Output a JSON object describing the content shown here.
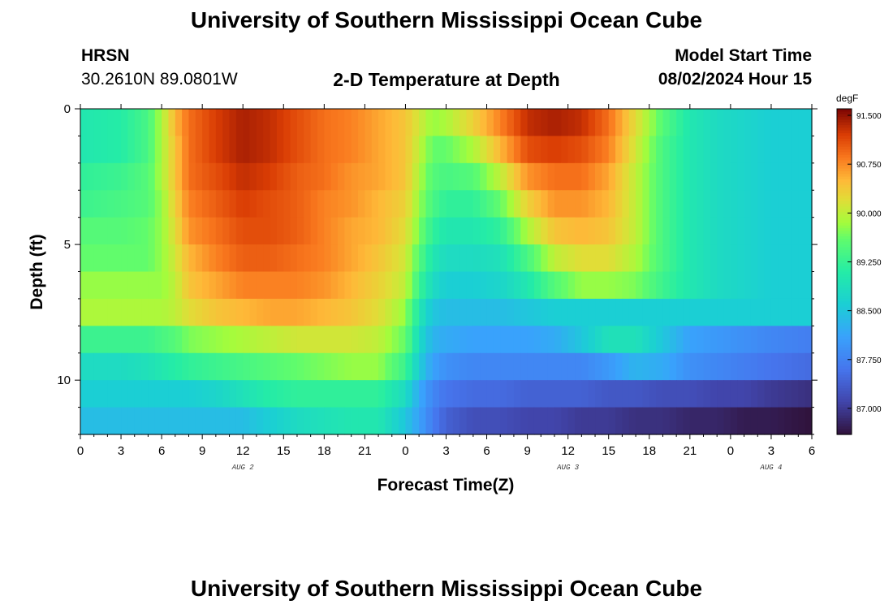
{
  "header": {
    "title": "University of Southern Mississippi Ocean Cube",
    "station": "HRSN",
    "coords": "30.2610N  89.0801W",
    "subtitle": "2-D Temperature at Depth",
    "model_label": "Model Start Time",
    "model_time": "08/02/2024 Hour 15"
  },
  "footer": {
    "title": "University of Southern Mississippi Ocean Cube"
  },
  "chart_data": {
    "type": "heatmap",
    "title": "2-D Temperature at Depth",
    "xlabel": "Forecast Time(Z)",
    "ylabel": "Depth (ft)",
    "x_range_hours": [
      0,
      54
    ],
    "x_ticks": [
      "0",
      "3",
      "6",
      "9",
      "12",
      "15",
      "18",
      "21",
      "0",
      "3",
      "6",
      "9",
      "12",
      "15",
      "18",
      "21",
      "0",
      "3",
      "6"
    ],
    "x_tick_hours": [
      0,
      3,
      6,
      9,
      12,
      15,
      18,
      21,
      24,
      27,
      30,
      33,
      36,
      39,
      42,
      45,
      48,
      51,
      54
    ],
    "day_labels": [
      {
        "label": "AUG 2",
        "hour": 12
      },
      {
        "label": "AUG 3",
        "hour": 36
      },
      {
        "label": "AUG 4",
        "hour": 51
      }
    ],
    "y_range_ft": [
      0,
      12
    ],
    "y_ticks": [
      "0",
      "5",
      "10"
    ],
    "y_tick_values": [
      0,
      5,
      10
    ],
    "depth_levels_ft": [
      0.5,
      1.5,
      2.5,
      3.5,
      4.5,
      5.5,
      6.5,
      7.5,
      8.5,
      9.5,
      10.5,
      11.5
    ],
    "colorbar": {
      "unit": "degF",
      "min": 86.6,
      "max": 91.6,
      "tick_labels": [
        "91.500",
        "90.750",
        "90.000",
        "89.250",
        "88.500",
        "87.750",
        "87.000"
      ],
      "tick_values": [
        91.5,
        90.75,
        90.0,
        89.25,
        88.5,
        87.75,
        87.0
      ]
    },
    "temperature_degF": {
      "hours": [
        0,
        3,
        5,
        6,
        7,
        8,
        10,
        12,
        14,
        16,
        18,
        20,
        22,
        24,
        25,
        26,
        27,
        29,
        31,
        33,
        35,
        37,
        39,
        41,
        43,
        45,
        47,
        49,
        51,
        54
      ],
      "rows": [
        [
          89.0,
          89.1,
          89.4,
          89.9,
          90.5,
          90.9,
          91.2,
          91.4,
          91.3,
          91.1,
          90.9,
          90.8,
          90.6,
          90.4,
          90.1,
          89.8,
          89.9,
          90.3,
          90.8,
          91.3,
          91.4,
          91.3,
          90.9,
          90.2,
          89.5,
          89.0,
          88.8,
          88.7,
          88.6,
          88.6
        ],
        [
          89.0,
          89.1,
          89.4,
          89.9,
          90.4,
          90.9,
          91.2,
          91.4,
          91.3,
          91.1,
          90.9,
          90.8,
          90.6,
          90.4,
          90.0,
          89.6,
          89.6,
          89.9,
          90.5,
          91.1,
          91.2,
          91.1,
          90.8,
          90.1,
          89.4,
          89.0,
          88.8,
          88.7,
          88.6,
          88.6
        ],
        [
          89.2,
          89.3,
          89.5,
          89.9,
          90.4,
          90.9,
          91.1,
          91.3,
          91.2,
          91.0,
          90.9,
          90.7,
          90.6,
          90.4,
          89.9,
          89.5,
          89.4,
          89.5,
          90.0,
          90.7,
          90.9,
          90.9,
          90.6,
          90.0,
          89.4,
          89.0,
          88.8,
          88.7,
          88.6,
          88.6
        ],
        [
          89.3,
          89.4,
          89.5,
          89.8,
          90.3,
          90.8,
          91.0,
          91.2,
          91.1,
          91.0,
          90.8,
          90.7,
          90.5,
          90.3,
          89.8,
          89.4,
          89.2,
          89.2,
          89.6,
          90.3,
          90.7,
          90.7,
          90.5,
          90.0,
          89.4,
          89.0,
          88.8,
          88.7,
          88.6,
          88.6
        ],
        [
          89.5,
          89.5,
          89.6,
          89.8,
          90.2,
          90.7,
          90.9,
          91.1,
          91.1,
          91.0,
          90.8,
          90.6,
          90.5,
          90.2,
          89.7,
          89.2,
          89.0,
          89.0,
          89.2,
          89.9,
          90.4,
          90.5,
          90.4,
          90.0,
          89.4,
          89.0,
          88.8,
          88.7,
          88.6,
          88.6
        ],
        [
          89.6,
          89.6,
          89.6,
          89.8,
          90.1,
          90.5,
          90.8,
          91.0,
          91.0,
          90.9,
          90.8,
          90.6,
          90.4,
          90.1,
          89.5,
          89.0,
          88.8,
          88.8,
          88.9,
          89.4,
          90.0,
          90.2,
          90.2,
          89.9,
          89.4,
          89.0,
          88.8,
          88.7,
          88.6,
          88.6
        ],
        [
          89.8,
          89.8,
          89.8,
          89.8,
          90.0,
          90.4,
          90.6,
          90.8,
          90.8,
          90.8,
          90.7,
          90.5,
          90.3,
          90.0,
          89.3,
          88.8,
          88.6,
          88.6,
          88.7,
          89.0,
          89.5,
          89.8,
          89.8,
          89.7,
          89.3,
          89.0,
          88.8,
          88.7,
          88.6,
          88.6
        ],
        [
          89.9,
          89.9,
          89.9,
          89.9,
          90.0,
          90.2,
          90.4,
          90.5,
          90.6,
          90.6,
          90.5,
          90.4,
          90.2,
          89.8,
          89.0,
          88.5,
          88.4,
          88.4,
          88.4,
          88.5,
          88.6,
          88.6,
          88.6,
          88.6,
          88.6,
          88.6,
          88.6,
          88.6,
          88.6,
          88.6
        ],
        [
          89.3,
          89.3,
          89.3,
          89.4,
          89.5,
          89.7,
          89.8,
          89.9,
          90.0,
          90.1,
          90.1,
          90.1,
          90.0,
          89.6,
          88.8,
          88.3,
          88.2,
          88.1,
          88.1,
          88.1,
          88.2,
          88.5,
          88.9,
          88.9,
          88.5,
          88.1,
          88.0,
          87.9,
          87.8,
          87.7
        ],
        [
          88.8,
          88.8,
          88.9,
          89.0,
          89.1,
          89.2,
          89.3,
          89.4,
          89.5,
          89.6,
          89.7,
          89.8,
          89.8,
          89.3,
          88.6,
          88.1,
          87.9,
          87.8,
          87.8,
          87.8,
          87.8,
          87.8,
          88.0,
          88.3,
          88.2,
          87.9,
          87.8,
          87.7,
          87.6,
          87.5
        ],
        [
          88.6,
          88.6,
          88.6,
          88.6,
          88.6,
          88.6,
          88.7,
          88.9,
          89.1,
          89.2,
          89.2,
          89.2,
          89.2,
          88.8,
          88.2,
          87.8,
          87.6,
          87.5,
          87.5,
          87.4,
          87.4,
          87.4,
          87.3,
          87.3,
          87.2,
          87.2,
          87.1,
          87.1,
          87.0,
          86.9
        ],
        [
          88.4,
          88.4,
          88.4,
          88.4,
          88.4,
          88.4,
          88.4,
          88.4,
          88.6,
          88.8,
          88.9,
          89.0,
          89.0,
          88.5,
          88.1,
          87.7,
          87.4,
          87.2,
          87.2,
          87.1,
          87.1,
          87.0,
          87.0,
          86.9,
          86.9,
          86.8,
          86.8,
          86.7,
          86.7,
          86.6
        ]
      ]
    }
  }
}
